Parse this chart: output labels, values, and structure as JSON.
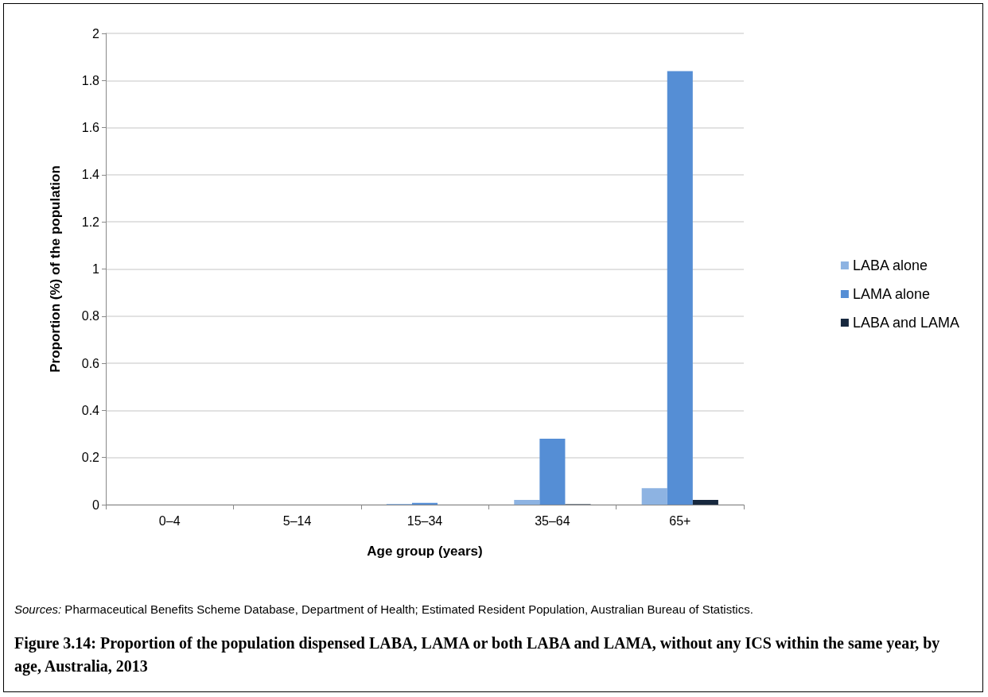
{
  "chart_data": {
    "type": "bar",
    "title": "Figure 3.14: Proportion of the population dispensed LABA, LAMA or both LABA and LAMA, without any ICS within the same year, by age, Australia, 2013",
    "xlabel": "Age group (years)",
    "ylabel": "Proportion (%) of the population",
    "categories": [
      "0–4",
      "5–14",
      "15–34",
      "35–64",
      "65+"
    ],
    "series": [
      {
        "name": "LABA alone",
        "color": "#8db3e2",
        "values": [
          0,
          0,
          0.003,
          0.02,
          0.07
        ]
      },
      {
        "name": "LAMA alone",
        "color": "#558ed5",
        "values": [
          0,
          null,
          0.008,
          0.28,
          1.84
        ]
      },
      {
        "name": "LABA and LAMA",
        "color": "#17283e",
        "values": [
          0,
          0,
          0,
          0.002,
          0.02
        ]
      }
    ],
    "ylim": [
      0,
      2
    ],
    "yticks": [
      0,
      0.2,
      0.4,
      0.6,
      0.8,
      1,
      1.2,
      1.4,
      1.6,
      1.8,
      2
    ],
    "grid": "y",
    "legend": "right",
    "annotations": [
      "Sources: Pharmaceutical Benefits Scheme Database, Department of Health; Estimated Resident Population, Australian Bureau of Statistics."
    ]
  }
}
